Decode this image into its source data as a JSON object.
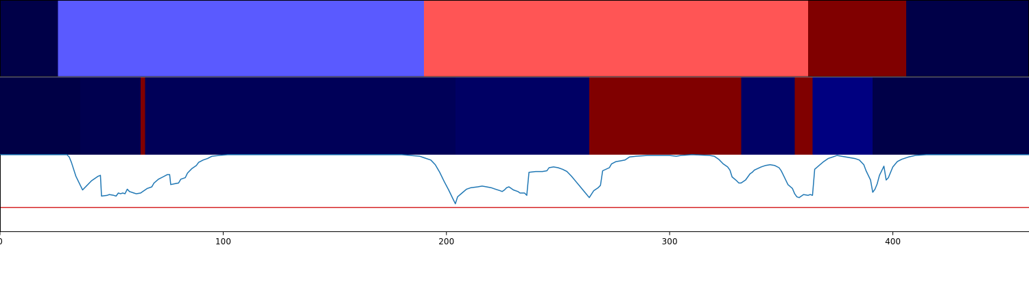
{
  "chart_data": [
    {
      "type": "heatmap",
      "panel": "top-strip",
      "xlim": [
        0,
        461
      ],
      "segments": [
        {
          "start": 0,
          "end": 26,
          "color": "#000048"
        },
        {
          "start": 26,
          "end": 190,
          "color": "#5a5aff"
        },
        {
          "start": 190,
          "end": 362,
          "color": "#ff5555"
        },
        {
          "start": 362,
          "end": 406,
          "color": "#800000"
        },
        {
          "start": 406,
          "end": 461,
          "color": "#000048"
        }
      ]
    },
    {
      "type": "heatmap",
      "panel": "middle-strip",
      "xlim": [
        0,
        461
      ],
      "segments": [
        {
          "start": 0,
          "end": 36,
          "color": "#000046"
        },
        {
          "start": 36,
          "end": 63,
          "color": "#00004f"
        },
        {
          "start": 63,
          "end": 65,
          "color": "#800000"
        },
        {
          "start": 65,
          "end": 204,
          "color": "#000058"
        },
        {
          "start": 204,
          "end": 264,
          "color": "#000064"
        },
        {
          "start": 264,
          "end": 332,
          "color": "#800000"
        },
        {
          "start": 332,
          "end": 356,
          "color": "#000066"
        },
        {
          "start": 356,
          "end": 364,
          "color": "#800000"
        },
        {
          "start": 364,
          "end": 391,
          "color": "#000080"
        },
        {
          "start": 391,
          "end": 461,
          "color": "#000048"
        }
      ]
    },
    {
      "type": "line",
      "panel": "bottom-line",
      "xlim": [
        0,
        461
      ],
      "ylim": [
        0,
        1
      ],
      "threshold": {
        "y": 0.31,
        "color": "#d62728"
      },
      "series": [
        {
          "color": "#1f77b4",
          "points": [
            [
              0,
              1.0
            ],
            [
              30,
              1.0
            ],
            [
              31,
              0.97
            ],
            [
              32,
              0.9
            ],
            [
              34,
              0.72
            ],
            [
              36,
              0.6
            ],
            [
              37,
              0.54
            ],
            [
              39,
              0.6
            ],
            [
              41,
              0.66
            ],
            [
              43,
              0.7
            ],
            [
              44,
              0.72
            ],
            [
              45,
              0.73
            ],
            [
              45.5,
              0.46
            ],
            [
              48,
              0.47
            ],
            [
              49,
              0.48
            ],
            [
              51,
              0.47
            ],
            [
              52,
              0.46
            ],
            [
              53,
              0.5
            ],
            [
              54,
              0.49
            ],
            [
              55,
              0.5
            ],
            [
              56,
              0.49
            ],
            [
              57,
              0.55
            ],
            [
              58,
              0.52
            ],
            [
              60,
              0.5
            ],
            [
              61,
              0.49
            ],
            [
              63,
              0.5
            ],
            [
              64,
              0.52
            ],
            [
              66,
              0.56
            ],
            [
              68,
              0.58
            ],
            [
              69,
              0.63
            ],
            [
              71,
              0.68
            ],
            [
              73,
              0.71
            ],
            [
              75,
              0.74
            ],
            [
              76,
              0.74
            ],
            [
              76.5,
              0.61
            ],
            [
              78,
              0.62
            ],
            [
              80,
              0.63
            ],
            [
              81,
              0.68
            ],
            [
              83,
              0.7
            ],
            [
              84,
              0.76
            ],
            [
              86,
              0.82
            ],
            [
              88,
              0.86
            ],
            [
              89,
              0.9
            ],
            [
              91,
              0.93
            ],
            [
              93,
              0.95
            ],
            [
              95,
              0.98
            ],
            [
              98,
              0.99
            ],
            [
              102,
              1.0
            ],
            [
              140,
              1.0
            ],
            [
              180,
              1.0
            ],
            [
              184,
              0.99
            ],
            [
              188,
              0.98
            ],
            [
              190,
              0.96
            ],
            [
              193,
              0.93
            ],
            [
              195,
              0.87
            ],
            [
              197,
              0.77
            ],
            [
              199,
              0.65
            ],
            [
              201,
              0.54
            ],
            [
              203,
              0.42
            ],
            [
              204,
              0.36
            ],
            [
              205,
              0.45
            ],
            [
              207,
              0.5
            ],
            [
              209,
              0.55
            ],
            [
              211,
              0.57
            ],
            [
              214,
              0.58
            ],
            [
              216,
              0.59
            ],
            [
              218,
              0.58
            ],
            [
              220,
              0.57
            ],
            [
              222,
              0.55
            ],
            [
              224,
              0.53
            ],
            [
              225,
              0.52
            ],
            [
              226,
              0.54
            ],
            [
              227,
              0.57
            ],
            [
              228,
              0.58
            ],
            [
              230,
              0.54
            ],
            [
              232,
              0.52
            ],
            [
              233,
              0.5
            ],
            [
              235,
              0.5
            ],
            [
              236,
              0.47
            ],
            [
              237,
              0.77
            ],
            [
              240,
              0.78
            ],
            [
              243,
              0.78
            ],
            [
              245,
              0.79
            ],
            [
              246,
              0.83
            ],
            [
              248,
              0.84
            ],
            [
              250,
              0.83
            ],
            [
              252,
              0.81
            ],
            [
              254,
              0.78
            ],
            [
              256,
              0.72
            ],
            [
              258,
              0.65
            ],
            [
              260,
              0.58
            ],
            [
              262,
              0.51
            ],
            [
              264,
              0.44
            ],
            [
              266,
              0.53
            ],
            [
              268,
              0.57
            ],
            [
              269,
              0.6
            ],
            [
              270,
              0.79
            ],
            [
              273,
              0.83
            ],
            [
              274,
              0.88
            ],
            [
              276,
              0.91
            ],
            [
              278,
              0.92
            ],
            [
              280,
              0.93
            ],
            [
              282,
              0.97
            ],
            [
              285,
              0.98
            ],
            [
              290,
              0.99
            ],
            [
              300,
              0.99
            ],
            [
              303,
              0.98
            ],
            [
              305,
              0.99
            ],
            [
              310,
              1.0
            ],
            [
              318,
              0.99
            ],
            [
              320,
              0.98
            ],
            [
              322,
              0.94
            ],
            [
              324,
              0.88
            ],
            [
              326,
              0.84
            ],
            [
              327,
              0.8
            ],
            [
              328,
              0.71
            ],
            [
              330,
              0.66
            ],
            [
              331,
              0.63
            ],
            [
              332,
              0.63
            ],
            [
              334,
              0.67
            ],
            [
              336,
              0.75
            ],
            [
              337,
              0.77
            ],
            [
              338,
              0.8
            ],
            [
              341,
              0.84
            ],
            [
              343,
              0.86
            ],
            [
              345,
              0.87
            ],
            [
              347,
              0.86
            ],
            [
              349,
              0.83
            ],
            [
              350,
              0.79
            ],
            [
              351,
              0.73
            ],
            [
              353,
              0.61
            ],
            [
              355,
              0.56
            ],
            [
              356,
              0.49
            ],
            [
              357,
              0.45
            ],
            [
              358,
              0.44
            ],
            [
              359,
              0.46
            ],
            [
              360,
              0.48
            ],
            [
              362,
              0.47
            ],
            [
              363,
              0.48
            ],
            [
              364,
              0.47
            ],
            [
              365,
              0.81
            ],
            [
              367,
              0.86
            ],
            [
              369,
              0.91
            ],
            [
              371,
              0.95
            ],
            [
              373,
              0.97
            ],
            [
              375,
              0.99
            ],
            [
              377,
              0.98
            ],
            [
              379,
              0.97
            ],
            [
              383,
              0.95
            ],
            [
              385,
              0.93
            ],
            [
              387,
              0.87
            ],
            [
              388,
              0.79
            ],
            [
              390,
              0.67
            ],
            [
              391,
              0.51
            ],
            [
              392,
              0.55
            ],
            [
              393,
              0.62
            ],
            [
              394,
              0.73
            ],
            [
              396,
              0.85
            ],
            [
              397,
              0.67
            ],
            [
              398,
              0.7
            ],
            [
              400,
              0.84
            ],
            [
              402,
              0.91
            ],
            [
              404,
              0.94
            ],
            [
              407,
              0.97
            ],
            [
              410,
              0.99
            ],
            [
              415,
              1.0
            ],
            [
              430,
              1.0
            ],
            [
              461,
              1.0
            ]
          ]
        }
      ]
    }
  ],
  "x_axis": {
    "ticks": [
      0,
      100,
      200,
      300,
      400
    ],
    "tick_labels": [
      "0",
      "100",
      "200",
      "300",
      "400"
    ]
  }
}
